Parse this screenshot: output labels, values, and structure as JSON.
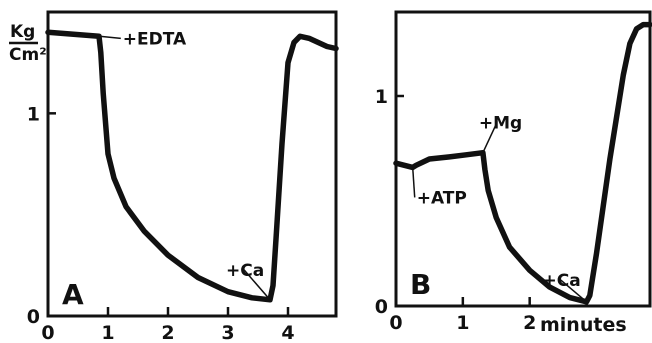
{
  "ylabel_top": "Kg",
  "ylabel_bottom": "Cm²",
  "chart_data": [
    {
      "type": "line",
      "panel_label": "A",
      "xlim": [
        0,
        4.8
      ],
      "ylim": [
        0,
        1.5
      ],
      "xticks": [
        {
          "v": 0,
          "label": "0"
        },
        {
          "v": 1,
          "label": "1"
        },
        {
          "v": 2,
          "label": "2"
        },
        {
          "v": 3,
          "label": "3"
        },
        {
          "v": 4,
          "label": "4"
        }
      ],
      "yticks": [
        {
          "v": 0,
          "label": "0"
        },
        {
          "v": 1,
          "label": "1"
        }
      ],
      "x": [
        0,
        0.85,
        0.88,
        0.92,
        1.0,
        1.1,
        1.3,
        1.6,
        2.0,
        2.5,
        3.0,
        3.4,
        3.7,
        3.75,
        3.8,
        3.9,
        4.0,
        4.1,
        4.2,
        4.35,
        4.5,
        4.65,
        4.8
      ],
      "y": [
        1.4,
        1.38,
        1.3,
        1.1,
        0.8,
        0.68,
        0.54,
        0.42,
        0.3,
        0.19,
        0.12,
        0.09,
        0.08,
        0.15,
        0.38,
        0.85,
        1.25,
        1.35,
        1.38,
        1.37,
        1.35,
        1.33,
        1.32
      ],
      "annotations": [
        {
          "text": "+EDTA",
          "x": 0.88,
          "y": 1.38
        },
        {
          "text": "+Ca",
          "x": 3.7,
          "y": 0.08
        }
      ]
    },
    {
      "type": "line",
      "panel_label": "B",
      "xlim": [
        0,
        3.8
      ],
      "ylim": [
        0,
        1.4
      ],
      "xticks": [
        {
          "v": 0,
          "label": "0"
        },
        {
          "v": 1,
          "label": "1"
        },
        {
          "v": 2,
          "label": "2"
        }
      ],
      "x_unit_label": "minutes",
      "yticks": [
        {
          "v": 0,
          "label": "0"
        },
        {
          "v": 1,
          "label": "1"
        }
      ],
      "x": [
        0,
        0.25,
        0.3,
        0.5,
        0.8,
        1.05,
        1.3,
        1.33,
        1.38,
        1.5,
        1.7,
        2.0,
        2.3,
        2.6,
        2.85,
        2.9,
        3.0,
        3.2,
        3.4,
        3.5,
        3.6,
        3.7,
        3.8
      ],
      "y": [
        0.68,
        0.66,
        0.67,
        0.7,
        0.71,
        0.72,
        0.73,
        0.65,
        0.55,
        0.42,
        0.28,
        0.17,
        0.09,
        0.04,
        0.02,
        0.05,
        0.25,
        0.7,
        1.1,
        1.25,
        1.32,
        1.34,
        1.34
      ],
      "annotations": [
        {
          "text": "+ATP",
          "x": 0.25,
          "y": 0.66
        },
        {
          "text": "+Mg",
          "x": 1.3,
          "y": 0.73
        },
        {
          "text": "+Ca",
          "x": 2.85,
          "y": 0.02
        }
      ]
    }
  ]
}
